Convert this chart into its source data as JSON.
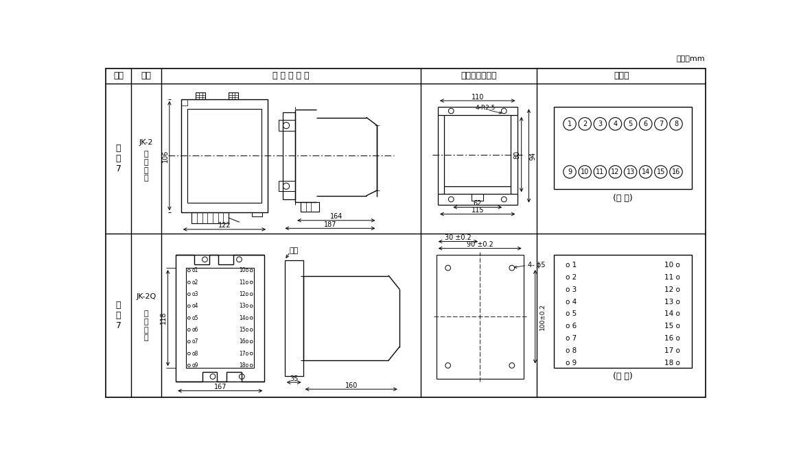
{
  "bg_color": "#ffffff",
  "line_color": "#000000",
  "unit_label": "单位：mm",
  "header_labels": [
    "图号",
    "结构",
    "外 形 尺 寸 图",
    "安装开孔尺寸图",
    "端子图"
  ],
  "col0": 10,
  "col1": 57,
  "col2": 115,
  "col3": 605,
  "col4": 825,
  "col5": 1145,
  "row_ht": 648,
  "row_hb": 620,
  "row1b": 335,
  "row2b": 25,
  "r1_fig": "附\n图\n7",
  "r1_struct_top": "JK-2",
  "r1_struct_bot": "板\n后\n接\n线",
  "r2_fig": "附\n图\n7",
  "r2_struct_top": "JK-2Q",
  "r2_struct_bot": "板\n前\n接\n线",
  "back_view": "(背 视)",
  "front_view": "(正 视)"
}
